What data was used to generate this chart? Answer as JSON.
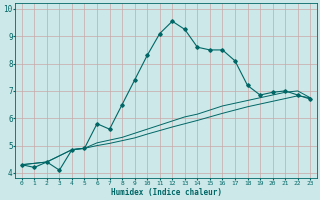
{
  "xlabel": "Humidex (Indice chaleur)",
  "bg_color": "#cce8e8",
  "grid_color": "#c8a8a8",
  "line_color": "#006666",
  "xlim": [
    -0.5,
    23.5
  ],
  "ylim": [
    3.8,
    10.2
  ],
  "yticks": [
    4,
    5,
    6,
    7,
    8,
    9,
    10
  ],
  "xticks": [
    0,
    1,
    2,
    3,
    4,
    5,
    6,
    7,
    8,
    9,
    10,
    11,
    12,
    13,
    14,
    15,
    16,
    17,
    18,
    19,
    20,
    21,
    22,
    23
  ],
  "curve1_x": [
    0,
    1,
    2,
    3,
    4,
    5,
    6,
    7,
    8,
    9,
    10,
    11,
    12,
    13,
    14,
    15,
    16,
    17,
    18,
    19,
    20,
    21,
    22,
    23
  ],
  "curve1_y": [
    4.3,
    4.2,
    4.4,
    4.1,
    4.85,
    4.9,
    5.8,
    5.6,
    6.5,
    7.4,
    8.3,
    9.1,
    9.55,
    9.25,
    8.6,
    8.5,
    8.5,
    8.1,
    7.2,
    6.85,
    6.95,
    7.0,
    6.85,
    6.7
  ],
  "curve2_x": [
    0,
    2,
    4,
    5,
    6,
    7,
    8,
    9,
    10,
    11,
    12,
    13,
    14,
    15,
    16,
    17,
    18,
    19,
    20,
    21,
    22,
    23
  ],
  "curve2_y": [
    4.3,
    4.4,
    4.85,
    4.9,
    5.1,
    5.2,
    5.3,
    5.45,
    5.6,
    5.75,
    5.9,
    6.05,
    6.15,
    6.3,
    6.45,
    6.55,
    6.65,
    6.75,
    6.85,
    6.95,
    7.0,
    6.75
  ],
  "curve3_x": [
    0,
    2,
    4,
    5,
    6,
    7,
    8,
    9,
    10,
    11,
    12,
    13,
    14,
    15,
    16,
    17,
    18,
    19,
    20,
    21,
    22,
    23
  ],
  "curve3_y": [
    4.3,
    4.4,
    4.85,
    4.9,
    5.0,
    5.08,
    5.18,
    5.28,
    5.42,
    5.55,
    5.68,
    5.8,
    5.92,
    6.05,
    6.18,
    6.3,
    6.42,
    6.52,
    6.62,
    6.72,
    6.82,
    6.75
  ]
}
